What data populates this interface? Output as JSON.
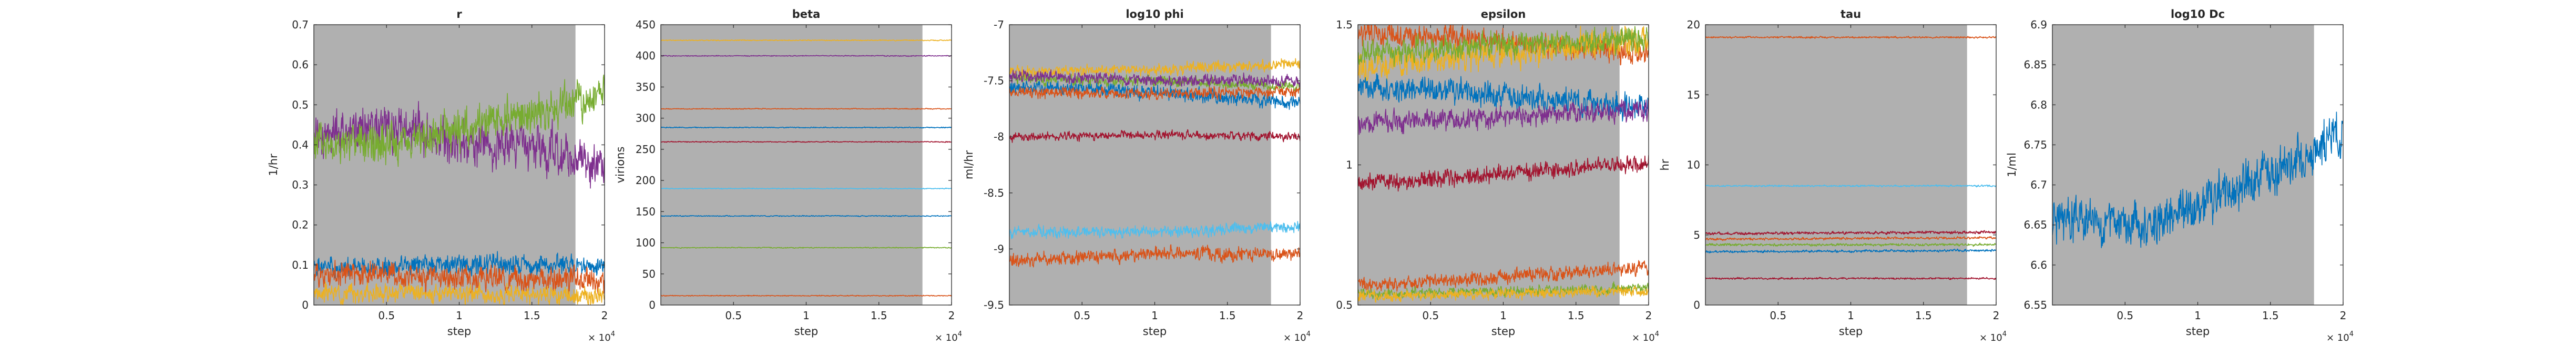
{
  "figure": {
    "background": "#ffffff",
    "axes_color": "#262626",
    "shade_color": "#b0b0b0",
    "exponent_label": "× 10",
    "exponent_power": "4"
  },
  "palette": [
    "#0072BD",
    "#D95319",
    "#EDB120",
    "#7E2F8E",
    "#77AC30",
    "#4DBEEE",
    "#A2142F"
  ],
  "chart_data": [
    {
      "type": "line",
      "title": "r",
      "xlabel": "step",
      "ylabel": "1/hr",
      "xlim": [
        0,
        20000
      ],
      "ylim": [
        0,
        0.7
      ],
      "x_ticks": [
        5000,
        10000,
        15000,
        20000
      ],
      "x_tick_labels": [
        "0.5",
        "1",
        "1.5",
        "2"
      ],
      "y_ticks": [
        0,
        0.1,
        0.2,
        0.3,
        0.4,
        0.5,
        0.6,
        0.7
      ],
      "y_tick_labels": [
        "0",
        "0.1",
        "0.2",
        "0.3",
        "0.4",
        "0.5",
        "0.6",
        "0.7"
      ],
      "shaded_x_range": [
        0,
        18000
      ],
      "series": [
        {
          "color": "#0072BD",
          "values": [
            [
              0,
              0.09
            ],
            [
              10000,
              0.1
            ],
            [
              20000,
              0.1
            ]
          ],
          "noise": 0.02,
          "rand": 1
        },
        {
          "color": "#D95319",
          "values": [
            [
              0,
              0.08
            ],
            [
              10000,
              0.07
            ],
            [
              20000,
              0.06
            ]
          ],
          "noise": 0.025,
          "rand": 2
        },
        {
          "color": "#EDB120",
          "values": [
            [
              0,
              0.03
            ],
            [
              10000,
              0.03
            ],
            [
              20000,
              0.02
            ]
          ],
          "noise": 0.018,
          "rand": 3
        },
        {
          "color": "#7E2F8E",
          "values": [
            [
              0,
              0.43
            ],
            [
              5000,
              0.44
            ],
            [
              10000,
              0.41
            ],
            [
              15000,
              0.4
            ],
            [
              20000,
              0.35
            ]
          ],
          "noise": 0.045,
          "rand": 4
        },
        {
          "color": "#77AC30",
          "values": [
            [
              0,
              0.4
            ],
            [
              5000,
              0.4
            ],
            [
              10000,
              0.44
            ],
            [
              15000,
              0.48
            ],
            [
              20000,
              0.53
            ]
          ],
          "noise": 0.04,
          "rand": 5
        }
      ]
    },
    {
      "type": "line",
      "title": "beta",
      "xlabel": "step",
      "ylabel": "virions",
      "xlim": [
        0,
        20000
      ],
      "ylim": [
        0,
        450
      ],
      "x_ticks": [
        5000,
        10000,
        15000,
        20000
      ],
      "x_tick_labels": [
        "0.5",
        "1",
        "1.5",
        "2"
      ],
      "y_ticks": [
        0,
        50,
        100,
        150,
        200,
        250,
        300,
        350,
        400,
        450
      ],
      "y_tick_labels": [
        "0",
        "50",
        "100",
        "150",
        "200",
        "250",
        "300",
        "350",
        "400",
        "450"
      ],
      "shaded_x_range": [
        0,
        18000
      ],
      "series": [
        {
          "color": "#EDB120",
          "values": [
            [
              0,
              425
            ],
            [
              20000,
              425
            ]
          ],
          "noise": 0.6,
          "rand": 11
        },
        {
          "color": "#7E2F8E",
          "values": [
            [
              0,
              400
            ],
            [
              20000,
              400
            ]
          ],
          "noise": 0.6,
          "rand": 12
        },
        {
          "color": "#D95319",
          "values": [
            [
              0,
              315
            ],
            [
              20000,
              315
            ]
          ],
          "noise": 0.6,
          "rand": 13
        },
        {
          "color": "#0072BD",
          "values": [
            [
              0,
              285
            ],
            [
              20000,
              285
            ]
          ],
          "noise": 0.6,
          "rand": 14
        },
        {
          "color": "#A2142F",
          "values": [
            [
              0,
              262
            ],
            [
              20000,
              262
            ]
          ],
          "noise": 0.6,
          "rand": 15
        },
        {
          "color": "#4DBEEE",
          "values": [
            [
              0,
              187
            ],
            [
              20000,
              187
            ]
          ],
          "noise": 0.6,
          "rand": 16
        },
        {
          "color": "#0072BD",
          "values": [
            [
              0,
              143
            ],
            [
              20000,
              143
            ]
          ],
          "noise": 0.6,
          "rand": 17
        },
        {
          "color": "#77AC30",
          "values": [
            [
              0,
              92
            ],
            [
              20000,
              92
            ]
          ],
          "noise": 0.6,
          "rand": 18
        },
        {
          "color": "#D95319",
          "values": [
            [
              0,
              15
            ],
            [
              20000,
              15
            ]
          ],
          "noise": 0.6,
          "rand": 19
        }
      ]
    },
    {
      "type": "line",
      "title": "log10 phi",
      "xlabel": "step",
      "ylabel": "ml/hr",
      "xlim": [
        0,
        20000
      ],
      "ylim": [
        -9.5,
        -7
      ],
      "x_ticks": [
        5000,
        10000,
        15000,
        20000
      ],
      "x_tick_labels": [
        "0.5",
        "1",
        "1.5",
        "2"
      ],
      "y_ticks": [
        -9.5,
        -9,
        -8.5,
        -8,
        -7.5,
        -7
      ],
      "y_tick_labels": [
        "-9.5",
        "-9",
        "-8.5",
        "-8",
        "-7.5",
        "-7"
      ],
      "shaded_x_range": [
        0,
        18000
      ],
      "series": [
        {
          "color": "#EDB120",
          "values": [
            [
              0,
              -7.42
            ],
            [
              10000,
              -7.4
            ],
            [
              20000,
              -7.35
            ]
          ],
          "noise": 0.04,
          "rand": 21
        },
        {
          "color": "#0072BD",
          "values": [
            [
              0,
              -7.55
            ],
            [
              10000,
              -7.6
            ],
            [
              20000,
              -7.7
            ]
          ],
          "noise": 0.05,
          "rand": 22
        },
        {
          "color": "#77AC30",
          "values": [
            [
              0,
              -7.48
            ],
            [
              10000,
              -7.5
            ],
            [
              20000,
              -7.55
            ]
          ],
          "noise": 0.04,
          "rand": 23
        },
        {
          "color": "#D95319",
          "values": [
            [
              0,
              -7.6
            ],
            [
              10000,
              -7.62
            ],
            [
              20000,
              -7.6
            ]
          ],
          "noise": 0.04,
          "rand": 24
        },
        {
          "color": "#7E2F8E",
          "values": [
            [
              0,
              -7.45
            ],
            [
              10000,
              -7.5
            ],
            [
              20000,
              -7.5
            ]
          ],
          "noise": 0.04,
          "rand": 25
        },
        {
          "color": "#A2142F",
          "values": [
            [
              0,
              -8.0
            ],
            [
              10000,
              -7.98
            ],
            [
              20000,
              -8.0
            ]
          ],
          "noise": 0.03,
          "rand": 26
        },
        {
          "color": "#4DBEEE",
          "values": [
            [
              0,
              -8.85
            ],
            [
              10000,
              -8.85
            ],
            [
              20000,
              -8.8
            ]
          ],
          "noise": 0.04,
          "rand": 27
        },
        {
          "color": "#D95319",
          "values": [
            [
              0,
              -9.1
            ],
            [
              10000,
              -9.05
            ],
            [
              20000,
              -9.05
            ]
          ],
          "noise": 0.05,
          "rand": 28
        }
      ]
    },
    {
      "type": "line",
      "title": "epsilon",
      "xlabel": "step",
      "ylabel": "",
      "xlim": [
        0,
        20000
      ],
      "ylim": [
        0.5,
        1.5
      ],
      "x_ticks": [
        5000,
        10000,
        15000,
        20000
      ],
      "x_tick_labels": [
        "0.5",
        "1",
        "1.5",
        "2"
      ],
      "y_ticks": [
        0.5,
        1,
        1.5
      ],
      "y_tick_labels": [
        "0.5",
        "1",
        "1.5"
      ],
      "shaded_x_range": [
        0,
        18000
      ],
      "series": [
        {
          "color": "#D95319",
          "values": [
            [
              0,
              1.47
            ],
            [
              10000,
              1.44
            ],
            [
              20000,
              1.4
            ]
          ],
          "noise": 0.035,
          "rand": 31
        },
        {
          "color": "#EDB120",
          "values": [
            [
              0,
              1.35
            ],
            [
              10000,
              1.4
            ],
            [
              20000,
              1.45
            ]
          ],
          "noise": 0.04,
          "rand": 32
        },
        {
          "color": "#0072BD",
          "values": [
            [
              0,
              1.28
            ],
            [
              10000,
              1.25
            ],
            [
              20000,
              1.2
            ]
          ],
          "noise": 0.035,
          "rand": 33
        },
        {
          "color": "#77AC30",
          "values": [
            [
              0,
              1.4
            ],
            [
              10000,
              1.43
            ],
            [
              20000,
              1.45
            ]
          ],
          "noise": 0.035,
          "rand": 34
        },
        {
          "color": "#7E2F8E",
          "values": [
            [
              0,
              1.15
            ],
            [
              10000,
              1.17
            ],
            [
              20000,
              1.2
            ]
          ],
          "noise": 0.03,
          "rand": 35
        },
        {
          "color": "#A2142F",
          "values": [
            [
              0,
              0.93
            ],
            [
              10000,
              0.97
            ],
            [
              20000,
              1.0
            ]
          ],
          "noise": 0.025,
          "rand": 36
        },
        {
          "color": "#D95319",
          "values": [
            [
              0,
              0.57
            ],
            [
              10000,
              0.6
            ],
            [
              20000,
              0.63
            ]
          ],
          "noise": 0.02,
          "rand": 37
        },
        {
          "color": "#77AC30",
          "values": [
            [
              0,
              0.54
            ],
            [
              10000,
              0.55
            ],
            [
              20000,
              0.56
            ]
          ],
          "noise": 0.015,
          "rand": 38
        },
        {
          "color": "#EDB120",
          "values": [
            [
              0,
              0.53
            ],
            [
              10000,
              0.54
            ],
            [
              20000,
              0.55
            ]
          ],
          "noise": 0.015,
          "rand": 39
        }
      ]
    },
    {
      "type": "line",
      "title": "tau",
      "xlabel": "step",
      "ylabel": "hr",
      "xlim": [
        0,
        20000
      ],
      "ylim": [
        0,
        20
      ],
      "x_ticks": [
        5000,
        10000,
        15000,
        20000
      ],
      "x_tick_labels": [
        "0.5",
        "1",
        "1.5",
        "2"
      ],
      "y_ticks": [
        0,
        5,
        10,
        15,
        20
      ],
      "y_tick_labels": [
        "0",
        "5",
        "10",
        "15",
        "20"
      ],
      "shaded_x_range": [
        0,
        18000
      ],
      "series": [
        {
          "color": "#D95319",
          "values": [
            [
              0,
              19.1
            ],
            [
              20000,
              19.1
            ]
          ],
          "noise": 0.05,
          "rand": 41
        },
        {
          "color": "#4DBEEE",
          "values": [
            [
              0,
              8.5
            ],
            [
              20000,
              8.5
            ]
          ],
          "noise": 0.05,
          "rand": 42
        },
        {
          "color": "#A2142F",
          "values": [
            [
              0,
              5.1
            ],
            [
              20000,
              5.2
            ]
          ],
          "noise": 0.08,
          "rand": 43
        },
        {
          "color": "#D95319",
          "values": [
            [
              0,
              4.7
            ],
            [
              20000,
              4.8
            ]
          ],
          "noise": 0.07,
          "rand": 44
        },
        {
          "color": "#77AC30",
          "values": [
            [
              0,
              4.3
            ],
            [
              20000,
              4.3
            ]
          ],
          "noise": 0.07,
          "rand": 45
        },
        {
          "color": "#0072BD",
          "values": [
            [
              0,
              3.8
            ],
            [
              20000,
              3.9
            ]
          ],
          "noise": 0.07,
          "rand": 46
        },
        {
          "color": "#A2142F",
          "values": [
            [
              0,
              1.9
            ],
            [
              20000,
              1.9
            ]
          ],
          "noise": 0.05,
          "rand": 47
        }
      ]
    },
    {
      "type": "line",
      "title": "log10 Dc",
      "xlabel": "step",
      "ylabel": "1/ml",
      "xlim": [
        0,
        20000
      ],
      "ylim": [
        6.55,
        6.9
      ],
      "x_ticks": [
        5000,
        10000,
        15000,
        20000
      ],
      "x_tick_labels": [
        "0.5",
        "1",
        "1.5",
        "2"
      ],
      "y_ticks": [
        6.55,
        6.6,
        6.65,
        6.7,
        6.75,
        6.8,
        6.85,
        6.9
      ],
      "y_tick_labels": [
        "6.55",
        "6.6",
        "6.65",
        "6.7",
        "6.75",
        "6.8",
        "6.85",
        "6.9"
      ],
      "shaded_x_range": [
        0,
        18000
      ],
      "series": [
        {
          "color": "#0072BD",
          "values": [
            [
              0,
              6.655
            ],
            [
              2000,
              6.655
            ],
            [
              6000,
              6.65
            ],
            [
              10000,
              6.67
            ],
            [
              14000,
              6.71
            ],
            [
              18000,
              6.74
            ],
            [
              20000,
              6.77
            ]
          ],
          "noise": 0.022,
          "rand": 51
        }
      ]
    }
  ]
}
